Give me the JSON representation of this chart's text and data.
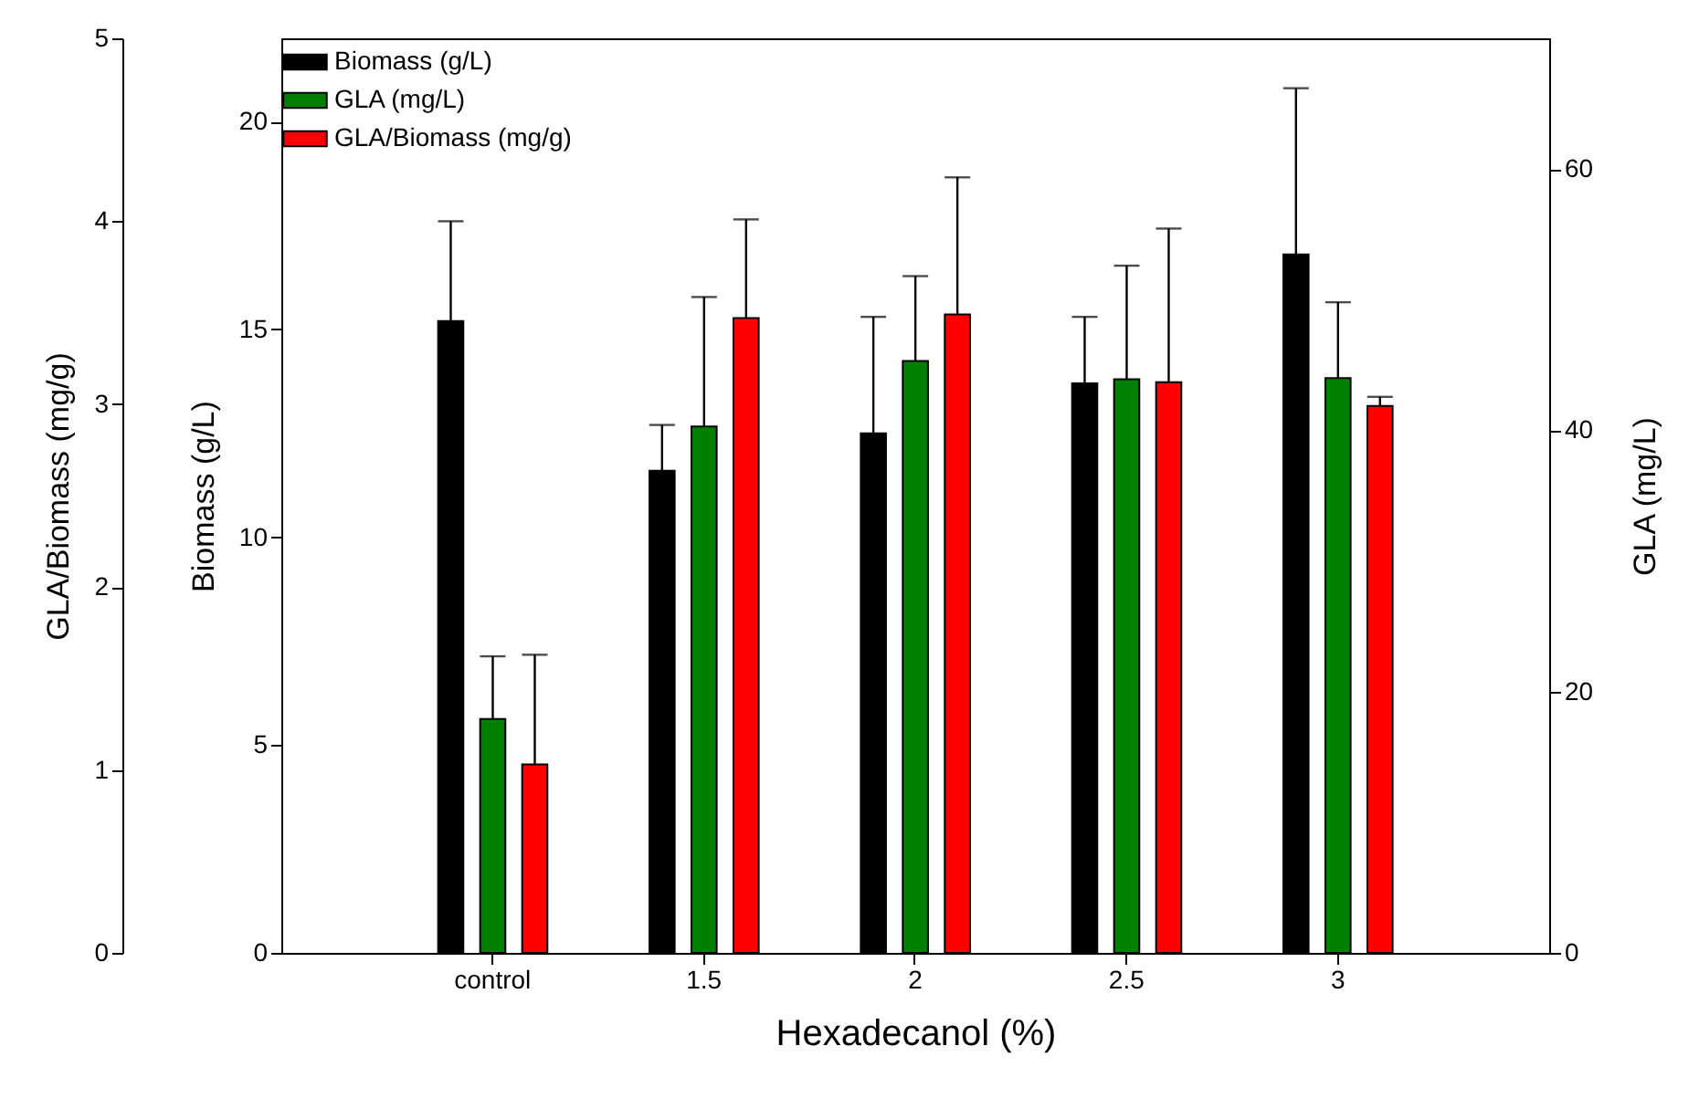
{
  "chart_data": {
    "type": "bar",
    "xlabel": "Hexadecanol (%)",
    "ylabel": "Biomass (g/L)",
    "y2label": "GLA (mg/L)",
    "y3label": "GLA/Biomass (mg/g)",
    "categories": [
      "control",
      "1.5",
      "2",
      "2.5",
      "3"
    ],
    "series": [
      {
        "name": "Biomass (g/L)",
        "color": "#000000",
        "values": [
          15.2,
          11.6,
          12.5,
          13.7,
          16.8
        ],
        "errors": [
          [
            15.2,
            17.6
          ],
          [
            11.6,
            12.7
          ],
          [
            12.5,
            15.3
          ],
          [
            13.7,
            15.3
          ],
          [
            16.8,
            20.8
          ]
        ]
      },
      {
        "name": "GLA (mg/L)",
        "color": "#008000",
        "axis": "y2",
        "values": [
          17.9,
          40.3,
          45.3,
          43.9,
          44.0
        ],
        "errors": [
          [
            17.9,
            22.7
          ],
          [
            40.3,
            50.2
          ],
          [
            45.3,
            51.8
          ],
          [
            43.9,
            52.6
          ],
          [
            44.0,
            49.8
          ]
        ]
      },
      {
        "name": "GLA/Biomass (mg/g)",
        "color": "#ff0000",
        "axis": "y3",
        "values": [
          1.03,
          3.47,
          3.49,
          3.12,
          2.99
        ],
        "errors": [
          [
            1.03,
            1.63
          ],
          [
            3.47,
            4.01
          ],
          [
            3.49,
            4.24
          ],
          [
            3.12,
            3.96
          ],
          [
            2.99,
            3.04
          ]
        ]
      }
    ],
    "ylim": [
      0,
      22
    ],
    "yticks": [
      0,
      5,
      10,
      15,
      20
    ],
    "y2lim": [
      0,
      70
    ],
    "y2ticks": [
      0,
      20,
      40,
      60
    ],
    "y3lim": [
      0,
      5
    ],
    "y3ticks": [
      0,
      1,
      2,
      3,
      4,
      5
    ],
    "legend": "top left",
    "grid": false
  }
}
